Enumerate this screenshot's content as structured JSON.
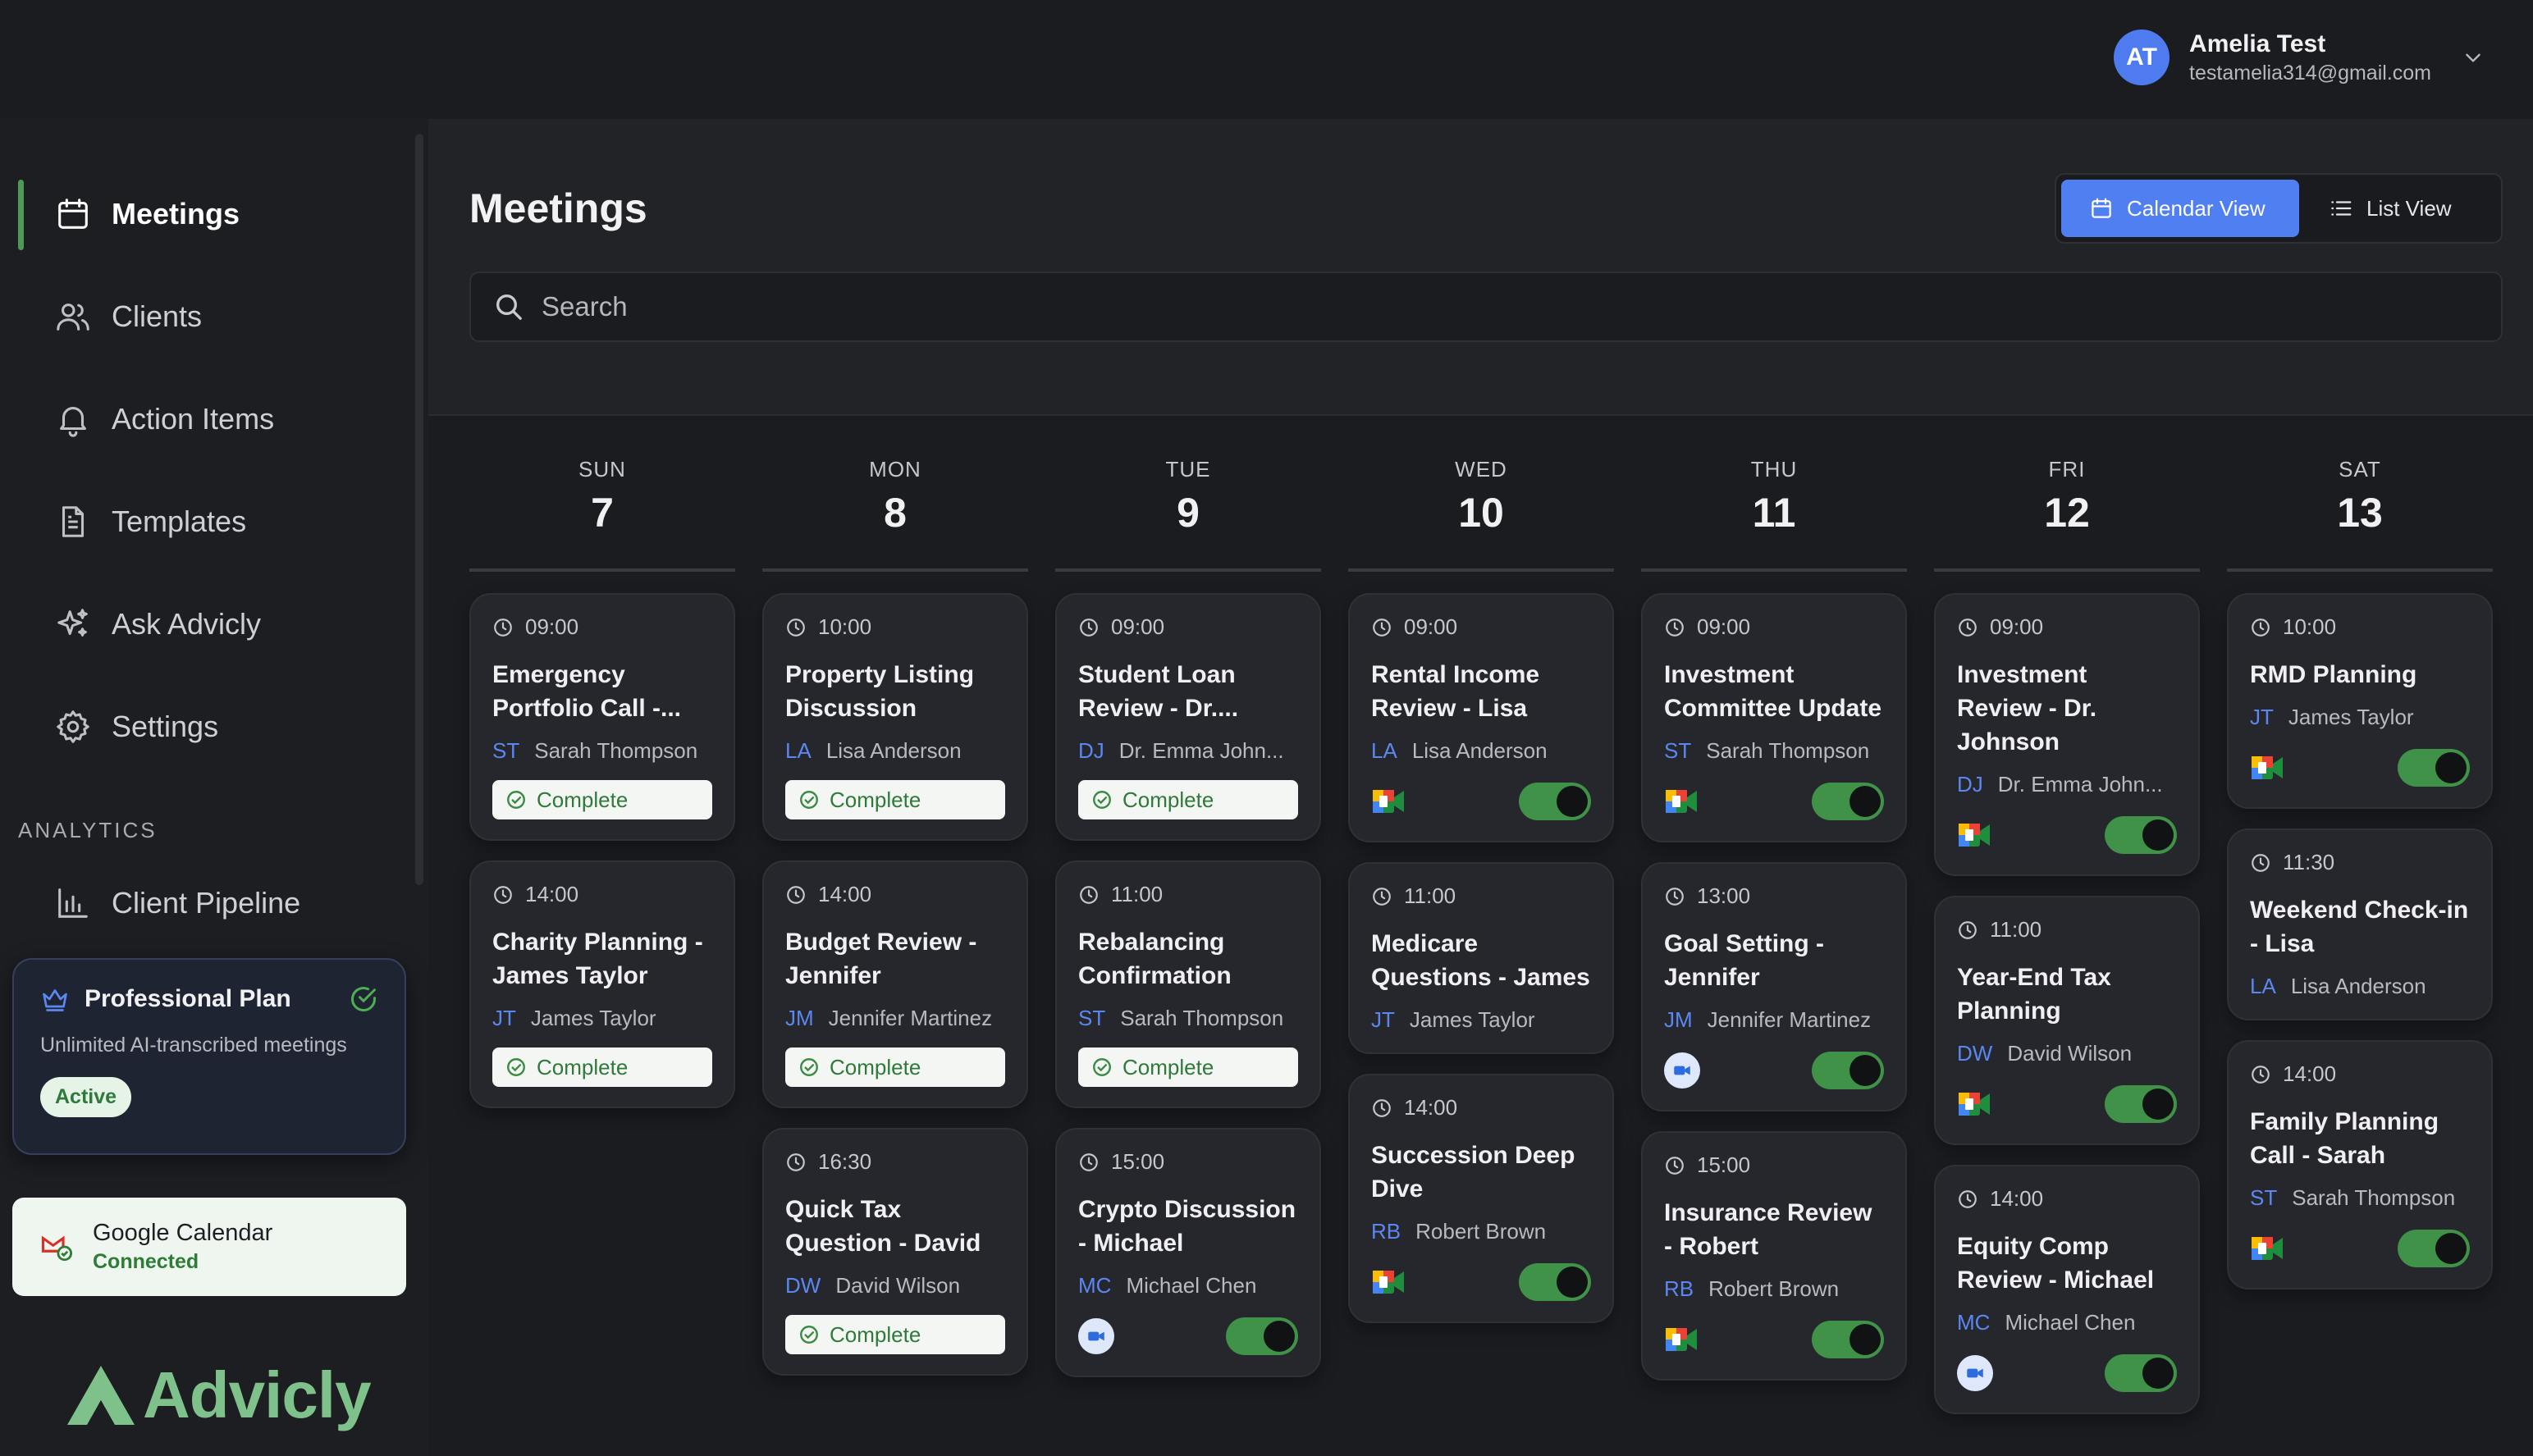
{
  "user": {
    "initials": "AT",
    "name": "Amelia Test",
    "email": "testamelia314@gmail.com"
  },
  "sidebar": {
    "items": [
      {
        "label": "Meetings",
        "icon": "calendar-icon"
      },
      {
        "label": "Clients",
        "icon": "users-icon"
      },
      {
        "label": "Action Items",
        "icon": "bell-icon"
      },
      {
        "label": "Templates",
        "icon": "document-icon"
      },
      {
        "label": "Ask Advicly",
        "icon": "sparkles-icon"
      },
      {
        "label": "Settings",
        "icon": "gear-icon"
      }
    ],
    "analytics_heading": "ANALYTICS",
    "analytics_items": [
      {
        "label": "Client Pipeline",
        "icon": "bar-chart-icon"
      }
    ],
    "plan": {
      "title": "Professional Plan",
      "description": "Unlimited AI-transcribed meetings",
      "status": "Active"
    },
    "integration": {
      "title": "Google Calendar",
      "status": "Connected"
    },
    "logo_text": "Advicly"
  },
  "main": {
    "title": "Meetings",
    "calendar_view_label": "Calendar View",
    "list_view_label": "List View",
    "search_placeholder": "Search"
  },
  "days": [
    {
      "name": "SUN",
      "num": "7",
      "meetings": [
        {
          "time": "09:00",
          "title": "Emergency Portfolio Call -...",
          "initials": "ST",
          "client": "Sarah Thompson",
          "status": "Complete"
        },
        {
          "time": "14:00",
          "title": "Charity Planning - James Taylor",
          "initials": "JT",
          "client": "James Taylor",
          "status": "Complete"
        }
      ]
    },
    {
      "name": "MON",
      "num": "8",
      "meetings": [
        {
          "time": "10:00",
          "title": "Property Listing Discussion",
          "initials": "LA",
          "client": "Lisa Anderson",
          "status": "Complete"
        },
        {
          "time": "14:00",
          "title": "Budget Review - Jennifer",
          "initials": "JM",
          "client": "Jennifer Martinez",
          "status": "Complete"
        },
        {
          "time": "16:30",
          "title": "Quick Tax Question - David",
          "initials": "DW",
          "client": "David Wilson",
          "status": "Complete"
        }
      ]
    },
    {
      "name": "TUE",
      "num": "9",
      "meetings": [
        {
          "time": "09:00",
          "title": "Student Loan Review - Dr....",
          "initials": "DJ",
          "client": "Dr. Emma John...",
          "status": "Complete"
        },
        {
          "time": "11:00",
          "title": "Rebalancing Confirmation",
          "initials": "ST",
          "client": "Sarah Thompson",
          "status": "Complete"
        },
        {
          "time": "15:00",
          "title": "Crypto Discussion - Michael",
          "initials": "MC",
          "client": "Michael Chen",
          "platform": "zoom",
          "toggle": true
        }
      ]
    },
    {
      "name": "WED",
      "num": "10",
      "meetings": [
        {
          "time": "09:00",
          "title": "Rental Income Review - Lisa",
          "initials": "LA",
          "client": "Lisa Anderson",
          "platform": "meet",
          "toggle": true
        },
        {
          "time": "11:00",
          "title": "Medicare Questions - James",
          "initials": "JT",
          "client": "James Taylor"
        },
        {
          "time": "14:00",
          "title": "Succession Deep Dive",
          "initials": "RB",
          "client": "Robert Brown",
          "platform": "meet",
          "toggle": true
        }
      ]
    },
    {
      "name": "THU",
      "num": "11",
      "meetings": [
        {
          "time": "09:00",
          "title": "Investment Committee Update",
          "initials": "ST",
          "client": "Sarah Thompson",
          "platform": "meet",
          "toggle": true
        },
        {
          "time": "13:00",
          "title": "Goal Setting - Jennifer",
          "initials": "JM",
          "client": "Jennifer Martinez",
          "platform": "zoom",
          "toggle": true
        },
        {
          "time": "15:00",
          "title": "Insurance Review - Robert",
          "initials": "RB",
          "client": "Robert Brown",
          "platform": "meet",
          "toggle": true
        }
      ]
    },
    {
      "name": "FRI",
      "num": "12",
      "meetings": [
        {
          "time": "09:00",
          "title": "Investment Review - Dr. Johnson",
          "initials": "DJ",
          "client": "Dr. Emma John...",
          "platform": "meet",
          "toggle": true
        },
        {
          "time": "11:00",
          "title": "Year-End Tax Planning",
          "initials": "DW",
          "client": "David Wilson",
          "platform": "meet",
          "toggle": true
        },
        {
          "time": "14:00",
          "title": "Equity Comp Review - Michael",
          "initials": "MC",
          "client": "Michael Chen",
          "platform": "zoom",
          "toggle": true
        }
      ]
    },
    {
      "name": "SAT",
      "num": "13",
      "meetings": [
        {
          "time": "10:00",
          "title": "RMD Planning",
          "initials": "JT",
          "client": "James Taylor",
          "platform": "meet",
          "toggle": true
        },
        {
          "time": "11:30",
          "title": "Weekend Check-in - Lisa",
          "initials": "LA",
          "client": "Lisa Anderson"
        },
        {
          "time": "14:00",
          "title": "Family Planning Call - Sarah",
          "initials": "ST",
          "client": "Sarah Thompson",
          "platform": "meet",
          "toggle": true
        }
      ]
    }
  ],
  "colors": {
    "accent_blue": "#4f7ff1",
    "accent_green": "#3f9247",
    "complete_text": "#2f7a3a"
  }
}
